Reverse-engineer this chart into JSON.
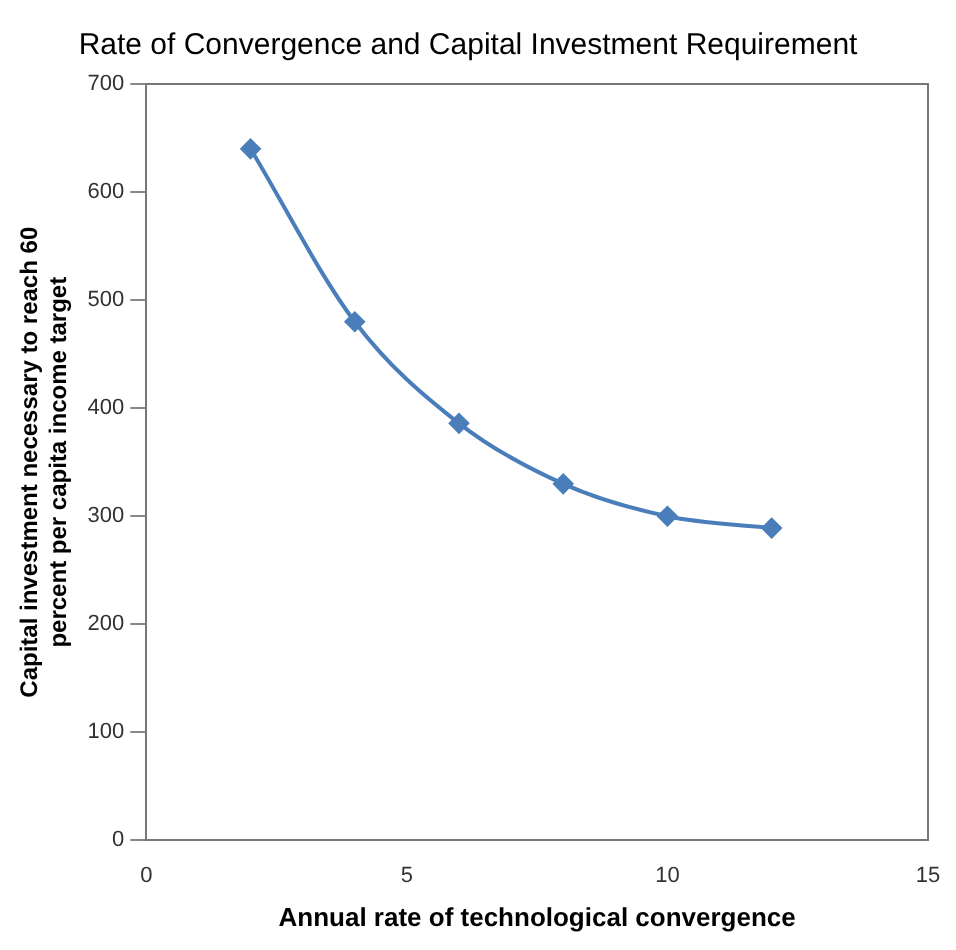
{
  "chart_data": {
    "type": "line",
    "title": "Rate of Convergence and Capital Investment Requirement",
    "xlabel": "Annual rate of technological convergence",
    "ylabel": "Capital investment necessary to reach 60 percent per capita income target",
    "x": [
      2,
      4,
      6,
      8,
      10,
      12
    ],
    "series": [
      {
        "color": "#4a7ebb",
        "values": [
          640,
          480,
          386,
          330,
          300,
          289
        ]
      }
    ],
    "xlim": [
      0,
      15
    ],
    "xticks": [
      0,
      5,
      10,
      15
    ],
    "ylim": [
      0,
      700
    ],
    "yticks": [
      0,
      100,
      200,
      300,
      400,
      500,
      600,
      700
    ],
    "grid": false,
    "legend": false,
    "marker": "diamond",
    "line_style": "solid"
  }
}
